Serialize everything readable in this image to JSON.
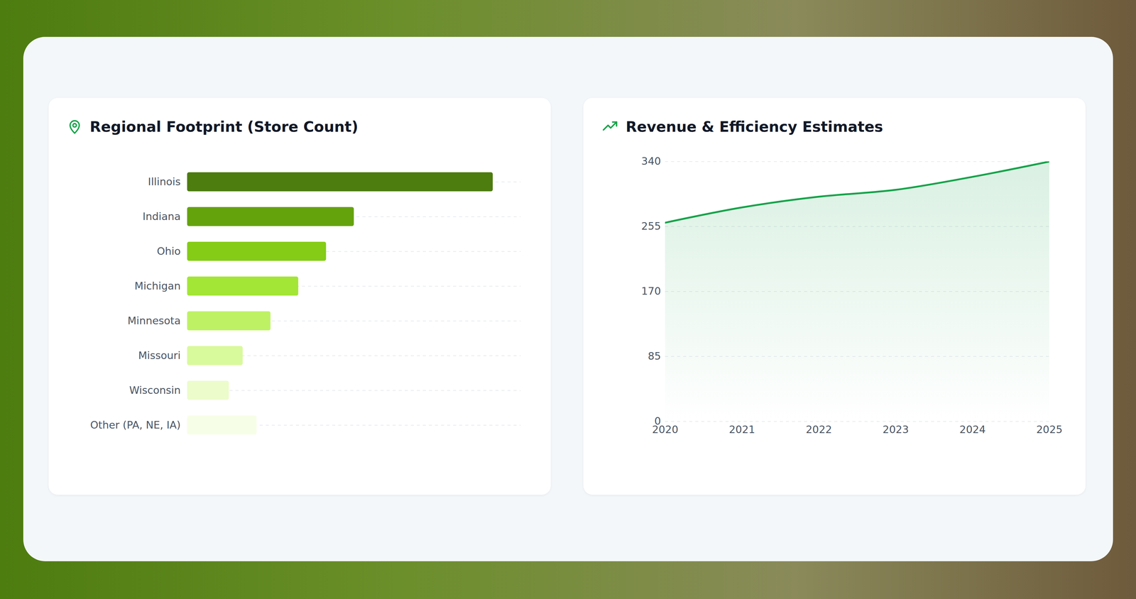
{
  "chart_data": [
    {
      "type": "bar",
      "title": "Regional Footprint (Store Count)",
      "orientation": "horizontal",
      "categories": [
        "Illinois",
        "Indiana",
        "Ohio",
        "Michigan",
        "Minnesota",
        "Missouri",
        "Wisconsin",
        "Other (PA, NE, IA)"
      ],
      "values": [
        110,
        60,
        50,
        40,
        30,
        20,
        15,
        25
      ],
      "colors": [
        "#4d7c0f",
        "#65a30d",
        "#84cc16",
        "#a3e635",
        "#bef264",
        "#d9f99d",
        "#ecfccb",
        "#f7fee7"
      ],
      "xlim": [
        0,
        120
      ],
      "tick_labels": "y",
      "grid": true
    },
    {
      "type": "area",
      "title": "Revenue & Efficiency Estimates",
      "x": [
        2020,
        2021,
        2022,
        2023,
        2024,
        2025
      ],
      "values": [
        260,
        280,
        294,
        303,
        320,
        340
      ],
      "color": "#16a34a",
      "xlim": [
        2020,
        2025
      ],
      "xticks": [
        2020,
        2021,
        2022,
        2023,
        2024,
        2025
      ],
      "ylim": [
        0,
        340
      ],
      "yticks": [
        0,
        85,
        170,
        255,
        340
      ],
      "grid": true
    }
  ]
}
